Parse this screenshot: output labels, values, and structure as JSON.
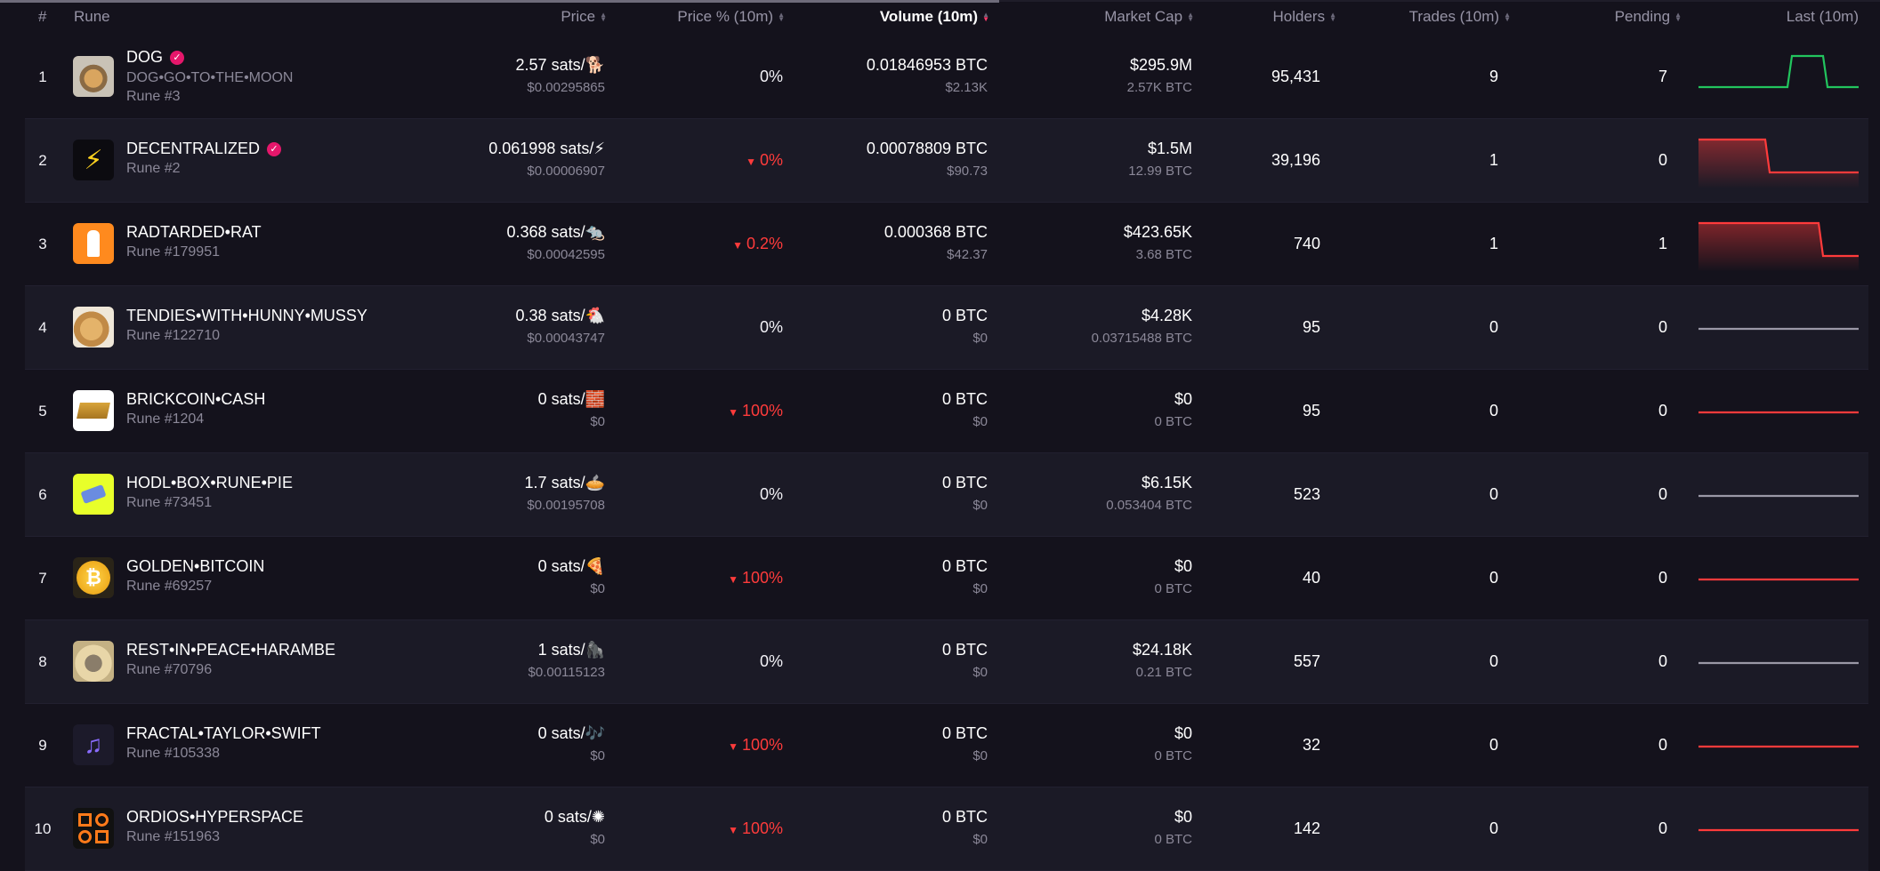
{
  "header": {
    "rank": "#",
    "rune": "Rune",
    "price": "Price",
    "price_pct": "Price % (10m)",
    "volume": "Volume (10m)",
    "market_cap": "Market Cap",
    "holders": "Holders",
    "trades": "Trades (10m)",
    "pending": "Pending",
    "last": "Last (10m)"
  },
  "colors": {
    "background": "#14121c",
    "row_alt": "#1b1a26",
    "negative": "#ff3b3b",
    "positive": "#22c55e",
    "flat": "#9a98a6",
    "verified": "#e5176b",
    "sort_active": "#ff3b6b"
  },
  "rows": [
    {
      "rank": "1",
      "name": "DOG",
      "verified": true,
      "spaced": "DOG•GO•TO•THE•MOON",
      "rune": "Rune #3",
      "icon": "dog-avatar-icon",
      "price": "2.57 sats/🐕",
      "price_usd": "$0.00295865",
      "pct": "0%",
      "pct_neg": false,
      "vol": "0.01846953 BTC",
      "vol_usd": "$2.13K",
      "mcap": "$295.9M",
      "mcap_btc": "2.57K BTC",
      "holders": "95,431",
      "trades": "9",
      "pending": "7",
      "spark": "up-spike"
    },
    {
      "rank": "2",
      "name": "DECENTRALIZED",
      "verified": true,
      "spaced": "",
      "rune": "Rune #2",
      "icon": "lightning-icon",
      "price": "0.061998 sats/⚡",
      "price_usd": "$0.00006907",
      "pct": "0%",
      "pct_neg": true,
      "vol": "0.00078809 BTC",
      "vol_usd": "$90.73",
      "mcap": "$1.5M",
      "mcap_btc": "12.99 BTC",
      "holders": "39,196",
      "trades": "1",
      "pending": "0",
      "spark": "drop-mid"
    },
    {
      "rank": "3",
      "name": "RADTARDED•RAT",
      "verified": false,
      "spaced": "",
      "rune": "Rune #179951",
      "icon": "rat-icon",
      "price": "0.368 sats/🐀",
      "price_usd": "$0.00042595",
      "pct": "0.2%",
      "pct_neg": true,
      "vol": "0.000368 BTC",
      "vol_usd": "$42.37",
      "mcap": "$423.65K",
      "mcap_btc": "3.68 BTC",
      "holders": "740",
      "trades": "1",
      "pending": "1",
      "spark": "drop-late"
    },
    {
      "rank": "4",
      "name": "TENDIES•WITH•HUNNY•MUSSY",
      "verified": false,
      "spaced": "",
      "rune": "Rune #122710",
      "icon": "tendies-icon",
      "price": "0.38 sats/🐔",
      "price_usd": "$0.00043747",
      "pct": "0%",
      "pct_neg": false,
      "vol": "0 BTC",
      "vol_usd": "$0",
      "mcap": "$4.28K",
      "mcap_btc": "0.03715488 BTC",
      "holders": "95",
      "trades": "0",
      "pending": "0",
      "spark": "flat"
    },
    {
      "rank": "5",
      "name": "BRICKCOIN•CASH",
      "verified": false,
      "spaced": "",
      "rune": "Rune #1204",
      "icon": "brick-icon",
      "price": "0 sats/🧱",
      "price_usd": "$0",
      "pct": "100%",
      "pct_neg": true,
      "vol": "0 BTC",
      "vol_usd": "$0",
      "mcap": "$0",
      "mcap_btc": "0 BTC",
      "holders": "95",
      "trades": "0",
      "pending": "0",
      "spark": "flat-red"
    },
    {
      "rank": "6",
      "name": "HODL•BOX•RUNE•PIE",
      "verified": false,
      "spaced": "",
      "rune": "Rune #73451",
      "icon": "pie-box-icon",
      "price": "1.7 sats/🥧",
      "price_usd": "$0.00195708",
      "pct": "0%",
      "pct_neg": false,
      "vol": "0 BTC",
      "vol_usd": "$0",
      "mcap": "$6.15K",
      "mcap_btc": "0.053404 BTC",
      "holders": "523",
      "trades": "0",
      "pending": "0",
      "spark": "flat"
    },
    {
      "rank": "7",
      "name": "GOLDEN•BITCOIN",
      "verified": false,
      "spaced": "",
      "rune": "Rune #69257",
      "icon": "gold-coin-icon",
      "price": "0 sats/🍕",
      "price_usd": "$0",
      "pct": "100%",
      "pct_neg": true,
      "vol": "0 BTC",
      "vol_usd": "$0",
      "mcap": "$0",
      "mcap_btc": "0 BTC",
      "holders": "40",
      "trades": "0",
      "pending": "0",
      "spark": "flat-red"
    },
    {
      "rank": "8",
      "name": "REST•IN•PEACE•HARAMBE",
      "verified": false,
      "spaced": "",
      "rune": "Rune #70796",
      "icon": "harambe-icon",
      "price": "1 sats/🦍",
      "price_usd": "$0.00115123",
      "pct": "0%",
      "pct_neg": false,
      "vol": "0 BTC",
      "vol_usd": "$0",
      "mcap": "$24.18K",
      "mcap_btc": "0.21 BTC",
      "holders": "557",
      "trades": "0",
      "pending": "0",
      "spark": "flat"
    },
    {
      "rank": "9",
      "name": "FRACTAL•TAYLOR•SWIFT",
      "verified": false,
      "spaced": "",
      "rune": "Rune #105338",
      "icon": "music-note-icon",
      "price": "0 sats/🎶",
      "price_usd": "$0",
      "pct": "100%",
      "pct_neg": true,
      "vol": "0 BTC",
      "vol_usd": "$0",
      "mcap": "$0",
      "mcap_btc": "0 BTC",
      "holders": "32",
      "trades": "0",
      "pending": "0",
      "spark": "flat-red"
    },
    {
      "rank": "10",
      "name": "ORDIOS•HYPERSPACE",
      "verified": false,
      "spaced": "",
      "rune": "Rune #151963",
      "icon": "hyperspace-icon",
      "price": "0 sats/✺",
      "price_usd": "$0",
      "pct": "100%",
      "pct_neg": true,
      "vol": "0 BTC",
      "vol_usd": "$0",
      "mcap": "$0",
      "mcap_btc": "0 BTC",
      "holders": "142",
      "trades": "0",
      "pending": "0",
      "spark": "flat-red"
    }
  ]
}
